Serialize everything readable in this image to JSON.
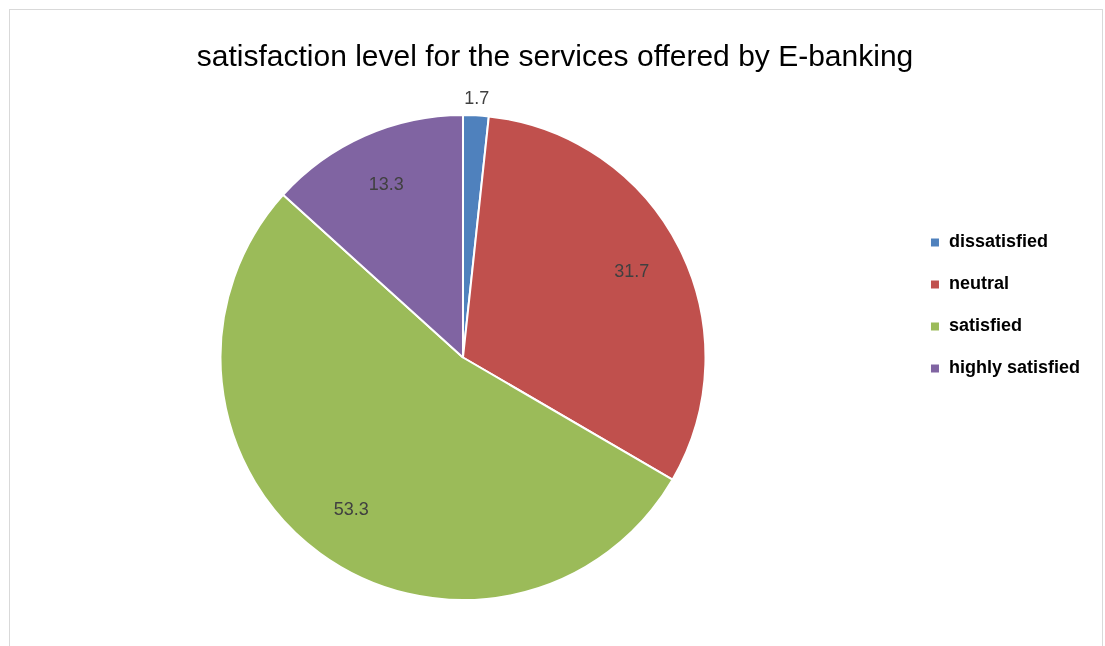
{
  "chart_data": {
    "type": "pie",
    "title": "satisfaction level for the services offered by E-banking",
    "categories": [
      "dissatisfied",
      "neutral",
      "satisfied",
      "highly satisfied"
    ],
    "values": [
      1.7,
      31.7,
      53.3,
      13.3
    ],
    "colors": [
      "#4f81bd",
      "#c0504d",
      "#9bbb59",
      "#8064a2"
    ],
    "data_labels": true,
    "legend": "right"
  }
}
